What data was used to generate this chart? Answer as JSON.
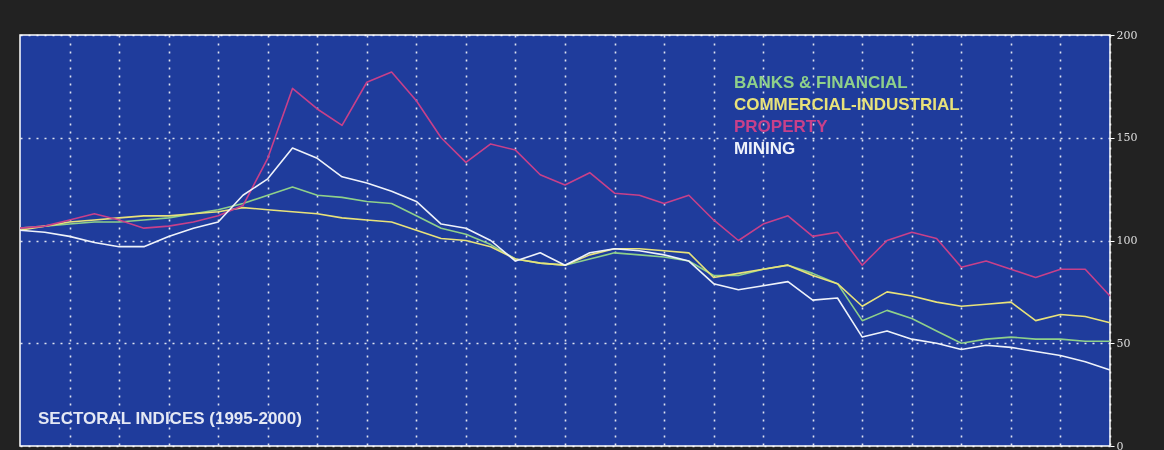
{
  "chart_data": {
    "type": "line",
    "title": "SECTORAL INDICES (1995-2000)",
    "categories": [
      null,
      null,
      null,
      null,
      null,
      null,
      null,
      null,
      null,
      null,
      null,
      null,
      null,
      null,
      null,
      null,
      null,
      null,
      null,
      null,
      null,
      null,
      null,
      null,
      null,
      null,
      null,
      null,
      null,
      null,
      null,
      null,
      null,
      null,
      null,
      null,
      null,
      null,
      null,
      null,
      null,
      null,
      null,
      null,
      null
    ],
    "series": [
      {
        "name": "BANKS & FINANCIAL",
        "color": "#8fd08a",
        "values": [
          106,
          107,
          108,
          109,
          109,
          110,
          111,
          113,
          115,
          118,
          122,
          126,
          122,
          121,
          119,
          118,
          112,
          106,
          103,
          98,
          91,
          89,
          88,
          91,
          94,
          93,
          92,
          90,
          83,
          83,
          86,
          88,
          84,
          79,
          61,
          66,
          62,
          56,
          50,
          52,
          53,
          52,
          52,
          51,
          51
        ]
      },
      {
        "name": "COMMERCIAL-INDUSTRIAL",
        "color": "#e8e27a",
        "values": [
          105,
          107,
          109,
          110,
          111,
          112,
          112,
          113,
          114,
          116,
          115,
          114,
          113,
          111,
          110,
          109,
          105,
          101,
          100,
          97,
          91,
          89,
          88,
          93,
          96,
          96,
          95,
          94,
          82,
          84,
          86,
          88,
          83,
          79,
          68,
          75,
          73,
          70,
          68,
          69,
          70,
          61,
          64,
          63,
          60
        ]
      },
      {
        "name": "PROPERTY",
        "color": "#c8408a",
        "values": [
          106,
          107,
          110,
          113,
          110,
          106,
          107,
          109,
          112,
          117,
          140,
          174,
          164,
          156,
          177,
          182,
          168,
          150,
          138,
          147,
          144,
          132,
          127,
          133,
          123,
          122,
          118,
          122,
          110,
          100,
          108,
          112,
          102,
          104,
          88,
          100,
          104,
          101,
          87,
          90,
          86,
          82,
          86,
          86,
          73
        ]
      },
      {
        "name": "MINING",
        "color": "#eef2fa",
        "values": [
          105,
          104,
          102,
          99,
          97,
          97,
          102,
          106,
          109,
          122,
          130,
          145,
          140,
          131,
          128,
          124,
          119,
          108,
          106,
          100,
          90,
          94,
          88,
          94,
          96,
          95,
          93,
          90,
          79,
          76,
          78,
          80,
          71,
          72,
          53,
          56,
          52,
          50,
          47,
          49,
          48,
          46,
          44,
          41,
          37
        ]
      }
    ],
    "ylim": [
      0,
      200
    ],
    "yticks": [
      0,
      50,
      100,
      150,
      200
    ],
    "grid": true,
    "legend": "top right",
    "tick_labels": "y",
    "marker": "none",
    "line_style": "solid"
  }
}
